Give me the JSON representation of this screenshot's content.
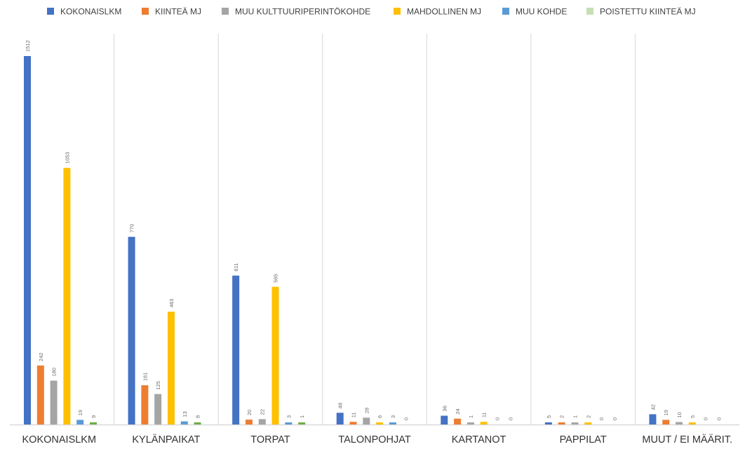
{
  "chart_data": {
    "type": "bar",
    "categories": [
      "KOKONAISLKM",
      "KYLÄNPAIKAT",
      "TORPAT",
      "TALONPOHJAT",
      "KARTANOT",
      "PAPPILAT",
      "MUUT / EI MÄÄRIT."
    ],
    "series": [
      {
        "name": "KOKONAISLKM",
        "color": "#4472C4",
        "values": [
          1512,
          770,
          611,
          48,
          36,
          5,
          42
        ]
      },
      {
        "name": "KIINTEÄ MJ",
        "color": "#ED7D31",
        "values": [
          242,
          161,
          20,
          11,
          24,
          2,
          19
        ]
      },
      {
        "name": "MUU KULTTUURIPERINTÖKOHDE",
        "color": "#A5A5A5",
        "values": [
          180,
          125,
          22,
          28,
          1,
          1,
          10
        ]
      },
      {
        "name": "MAHDOLLINEN MJ",
        "color": "#FFC000",
        "values": [
          1053,
          463,
          565,
          6,
          11,
          2,
          5
        ]
      },
      {
        "name": "MUU KOHDE",
        "color": "#5B9BD5",
        "values": [
          19,
          13,
          3,
          3,
          0,
          0,
          0
        ]
      },
      {
        "name": "POISTETTU KIINTEÄ MJ",
        "color": "#70AD47",
        "legend_color": "#C5E0B4",
        "values": [
          9,
          8,
          1,
          0,
          0,
          0,
          0
        ]
      }
    ],
    "ylim": [
      0,
      1512
    ],
    "grid": false,
    "legend_position": "top",
    "title": "",
    "xlabel": "",
    "ylabel": ""
  }
}
